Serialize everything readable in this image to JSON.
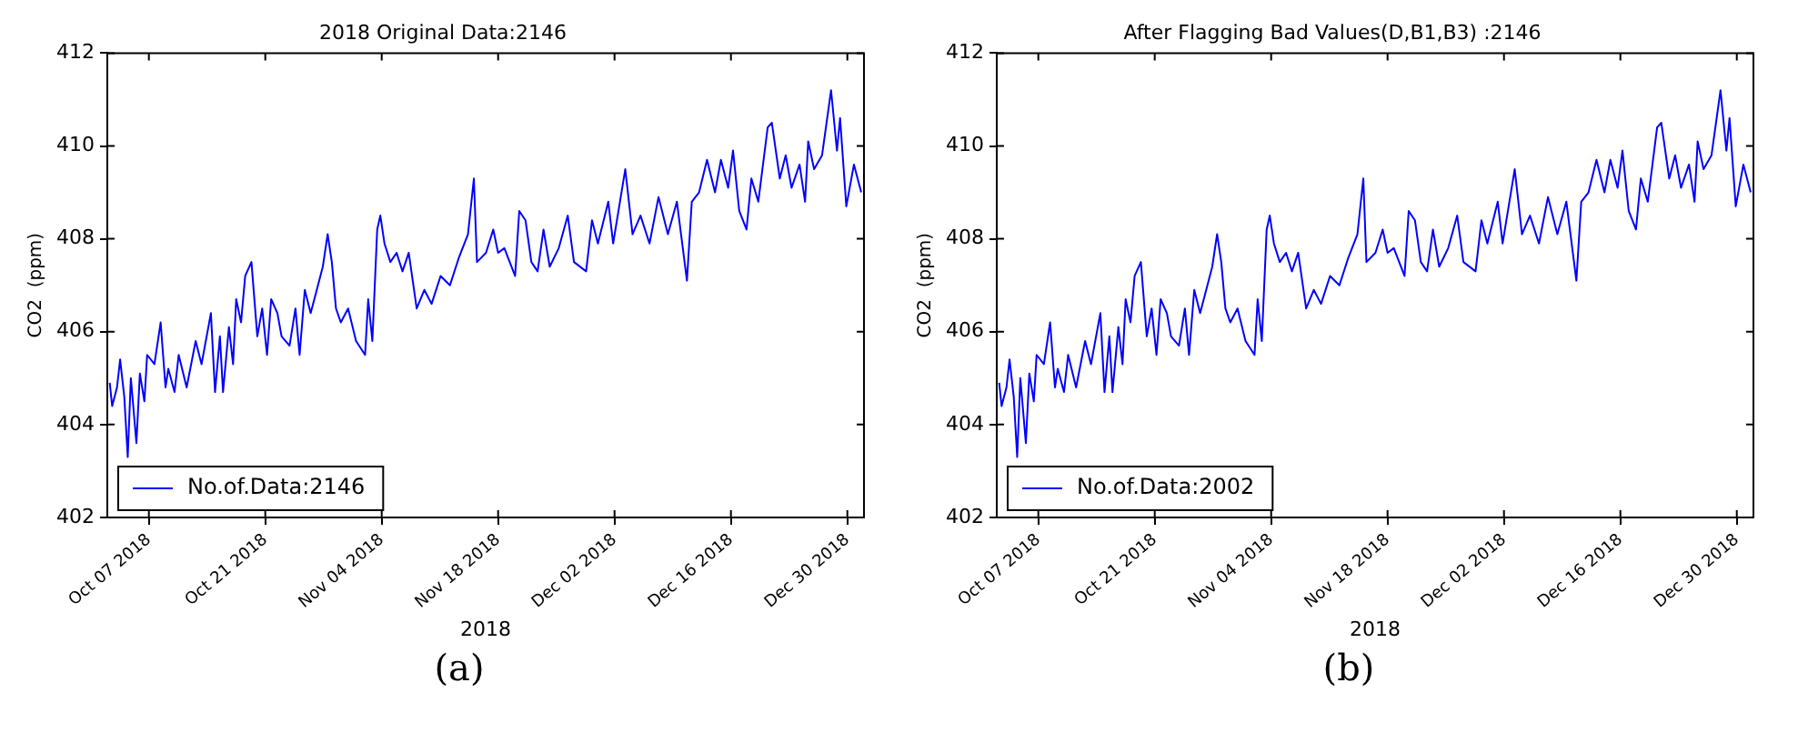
{
  "chart_data": [
    {
      "type": "line",
      "title": "2018 Original Data:2146",
      "xlabel": "2018",
      "ylabel": "CO2  (ppm)",
      "annotations": [
        "(a)"
      ],
      "legend": "bottom left",
      "grid": false,
      "marker": "none",
      "line_style": "solid",
      "xlim": [
        "2018-10-02",
        "2019-01-01"
      ],
      "xticks": [
        {
          "value": "2018-10-07",
          "label": "Oct 07 2018"
        },
        {
          "value": "2018-10-21",
          "label": "Oct 21 2018"
        },
        {
          "value": "2018-11-04",
          "label": "Nov 04 2018"
        },
        {
          "value": "2018-11-18",
          "label": "Nov 18 2018"
        },
        {
          "value": "2018-12-02",
          "label": "Dec 02 2018"
        },
        {
          "value": "2018-12-16",
          "label": "Dec 16 2018"
        },
        {
          "value": "2018-12-30",
          "label": "Dec 30 2018"
        }
      ],
      "ylim": [
        402,
        412
      ],
      "yticks": [
        402,
        404,
        406,
        408,
        410,
        412
      ],
      "x": [
        "2018-10-02T07:00",
        "2018-10-02T14:00",
        "2018-10-03T04:00",
        "2018-10-03T13:00",
        "2018-10-04T01:00",
        "2018-10-04T11:00",
        "2018-10-04T20:00",
        "2018-10-05T12:00",
        "2018-10-05T22:00",
        "2018-10-06T11:00",
        "2018-10-06T19:00",
        "2018-10-07T16:00",
        "2018-10-08T10:00",
        "2018-10-09T00:00",
        "2018-10-09T08:00",
        "2018-10-10T02:00",
        "2018-10-10T14:00",
        "2018-10-11T13:00",
        "2018-10-12T15:00",
        "2018-10-13T08:00",
        "2018-10-14T11:00",
        "2018-10-14T23:00",
        "2018-10-15T13:00",
        "2018-10-15T22:00",
        "2018-10-16T15:00",
        "2018-10-17T03:00",
        "2018-10-17T12:00",
        "2018-10-18T02:00",
        "2018-10-18T14:00",
        "2018-10-19T08:00",
        "2018-10-20T01:00",
        "2018-10-20T15:00",
        "2018-10-21T05:00",
        "2018-10-21T17:00",
        "2018-10-22T11:00",
        "2018-10-22T23:00",
        "2018-10-23T22:00",
        "2018-10-24T15:00",
        "2018-10-25T03:00",
        "2018-10-25T18:00",
        "2018-10-26T11:00",
        "2018-10-27T01:00",
        "2018-10-27T22:00",
        "2018-10-28T12:00",
        "2018-10-29T00:00",
        "2018-10-29T12:00",
        "2018-10-30T02:00",
        "2018-10-30T23:00",
        "2018-10-31T22:00",
        "2018-11-02T00:00",
        "2018-11-02T09:00",
        "2018-11-02T21:00",
        "2018-11-03T11:00",
        "2018-11-03T20:00",
        "2018-11-04T08:00",
        "2018-11-05T01:00",
        "2018-11-05T19:00",
        "2018-11-06T12:00",
        "2018-11-07T06:00",
        "2018-11-08T05:00",
        "2018-11-09T03:00",
        "2018-11-10T00:00",
        "2018-11-11T02:00",
        "2018-11-12T05:00",
        "2018-11-13T07:00",
        "2018-11-14T09:00",
        "2018-11-15T02:00",
        "2018-11-15T11:00",
        "2018-11-16T13:00",
        "2018-11-17T10:00",
        "2018-11-18T00:00",
        "2018-11-18T18:00",
        "2018-11-20T01:00",
        "2018-11-20T13:00",
        "2018-11-21T07:00",
        "2018-11-22T00:00",
        "2018-11-22T18:00",
        "2018-11-23T11:00",
        "2018-11-24T05:00",
        "2018-11-25T07:00",
        "2018-11-26T09:00",
        "2018-11-27T03:00",
        "2018-11-28T14:00",
        "2018-11-29T07:00",
        "2018-11-30T00:00",
        "2018-12-01T06:00",
        "2018-12-01T20:00",
        "2018-12-03T07:00",
        "2018-12-04T04:00",
        "2018-12-05T03:00",
        "2018-12-06T05:00",
        "2018-12-07T07:00",
        "2018-12-08T10:00",
        "2018-12-09T12:00",
        "2018-12-10T17:00",
        "2018-12-11T07:00",
        "2018-12-12T04:00",
        "2018-12-13T03:00",
        "2018-12-14T02:00",
        "2018-12-14T19:00",
        "2018-12-15T16:00",
        "2018-12-16T06:00",
        "2018-12-17T00:00",
        "2018-12-17T21:00",
        "2018-12-18T11:00",
        "2018-12-19T07:00",
        "2018-12-20T10:00",
        "2018-12-20T22:00",
        "2018-12-21T21:00",
        "2018-12-22T14:00",
        "2018-12-23T07:00",
        "2018-12-24T06:00",
        "2018-12-24T22:00",
        "2018-12-25T07:00",
        "2018-12-26T00:00",
        "2018-12-26T23:00",
        "2018-12-28T01:00",
        "2018-12-28T18:00",
        "2018-12-29T03:00",
        "2018-12-29T21:00",
        "2018-12-30T19:00",
        "2018-12-31T16:00"
      ],
      "series": [
        {
          "name": "No.of.Data:2146",
          "color": "#0000ff",
          "values": [
            404.9,
            404.4,
            404.8,
            405.4,
            404.6,
            403.3,
            405.0,
            403.6,
            405.1,
            404.5,
            405.5,
            405.3,
            406.2,
            404.8,
            405.2,
            404.7,
            405.5,
            404.8,
            405.8,
            405.3,
            406.4,
            404.7,
            405.9,
            404.7,
            406.1,
            405.3,
            406.7,
            406.2,
            407.2,
            407.5,
            405.9,
            406.5,
            405.5,
            406.7,
            406.4,
            405.9,
            405.7,
            406.5,
            405.5,
            406.9,
            406.4,
            406.8,
            407.4,
            408.1,
            407.5,
            406.5,
            406.2,
            406.5,
            405.8,
            405.5,
            406.7,
            405.8,
            408.2,
            408.5,
            407.9,
            407.5,
            407.7,
            407.3,
            407.7,
            406.5,
            406.9,
            406.6,
            407.2,
            407.0,
            407.6,
            408.1,
            409.3,
            407.5,
            407.7,
            408.2,
            407.7,
            407.8,
            407.2,
            408.6,
            408.4,
            407.5,
            407.3,
            408.2,
            407.4,
            407.8,
            408.5,
            407.5,
            407.3,
            408.4,
            407.9,
            408.8,
            407.9,
            409.5,
            408.1,
            408.5,
            407.9,
            408.9,
            408.1,
            408.8,
            407.1,
            408.8,
            409.0,
            409.7,
            409.0,
            409.7,
            409.1,
            409.9,
            408.6,
            408.2,
            409.3,
            408.8,
            410.4,
            410.5,
            409.3,
            409.8,
            409.1,
            409.6,
            408.8,
            410.1,
            409.5,
            409.8,
            411.2,
            409.9,
            410.6,
            408.7,
            409.6,
            409.0
          ]
        }
      ]
    },
    {
      "type": "line",
      "title": "After Flagging Bad Values(D,B1,B3) :2146",
      "xlabel": "2018",
      "ylabel": "CO2  (ppm)",
      "annotations": [
        "(b)"
      ],
      "legend": "bottom left",
      "grid": false,
      "marker": "none",
      "line_style": "solid",
      "xlim": [
        "2018-10-02",
        "2019-01-01"
      ],
      "xticks": [
        {
          "value": "2018-10-07",
          "label": "Oct 07 2018"
        },
        {
          "value": "2018-10-21",
          "label": "Oct 21 2018"
        },
        {
          "value": "2018-11-04",
          "label": "Nov 04 2018"
        },
        {
          "value": "2018-11-18",
          "label": "Nov 18 2018"
        },
        {
          "value": "2018-12-02",
          "label": "Dec 02 2018"
        },
        {
          "value": "2018-12-16",
          "label": "Dec 16 2018"
        },
        {
          "value": "2018-12-30",
          "label": "Dec 30 2018"
        }
      ],
      "ylim": [
        402,
        412
      ],
      "yticks": [
        402,
        404,
        406,
        408,
        410,
        412
      ],
      "x": [
        "2018-10-02T07:00",
        "2018-10-02T14:00",
        "2018-10-03T04:00",
        "2018-10-03T13:00",
        "2018-10-04T01:00",
        "2018-10-04T11:00",
        "2018-10-04T20:00",
        "2018-10-05T12:00",
        "2018-10-05T22:00",
        "2018-10-06T11:00",
        "2018-10-06T19:00",
        "2018-10-07T16:00",
        "2018-10-08T10:00",
        "2018-10-09T00:00",
        "2018-10-09T08:00",
        "2018-10-10T02:00",
        "2018-10-10T14:00",
        "2018-10-11T13:00",
        "2018-10-12T15:00",
        "2018-10-13T08:00",
        "2018-10-14T11:00",
        "2018-10-14T23:00",
        "2018-10-15T13:00",
        "2018-10-15T22:00",
        "2018-10-16T15:00",
        "2018-10-17T03:00",
        "2018-10-17T12:00",
        "2018-10-18T02:00",
        "2018-10-18T14:00",
        "2018-10-19T08:00",
        "2018-10-20T01:00",
        "2018-10-20T15:00",
        "2018-10-21T05:00",
        "2018-10-21T17:00",
        "2018-10-22T11:00",
        "2018-10-22T23:00",
        "2018-10-23T22:00",
        "2018-10-24T15:00",
        "2018-10-25T03:00",
        "2018-10-25T18:00",
        "2018-10-26T11:00",
        "2018-10-27T01:00",
        "2018-10-27T22:00",
        "2018-10-28T12:00",
        "2018-10-29T00:00",
        "2018-10-29T12:00",
        "2018-10-30T02:00",
        "2018-10-30T23:00",
        "2018-10-31T22:00",
        "2018-11-02T00:00",
        "2018-11-02T09:00",
        "2018-11-02T21:00",
        "2018-11-03T11:00",
        "2018-11-03T20:00",
        "2018-11-04T08:00",
        "2018-11-05T01:00",
        "2018-11-05T19:00",
        "2018-11-06T12:00",
        "2018-11-07T06:00",
        "2018-11-08T05:00",
        "2018-11-09T03:00",
        "2018-11-10T00:00",
        "2018-11-11T02:00",
        "2018-11-12T05:00",
        "2018-11-13T07:00",
        "2018-11-14T09:00",
        "2018-11-15T02:00",
        "2018-11-15T11:00",
        "2018-11-16T13:00",
        "2018-11-17T10:00",
        "2018-11-18T00:00",
        "2018-11-18T18:00",
        "2018-11-20T01:00",
        "2018-11-20T13:00",
        "2018-11-21T07:00",
        "2018-11-22T00:00",
        "2018-11-22T18:00",
        "2018-11-23T11:00",
        "2018-11-24T05:00",
        "2018-11-25T07:00",
        "2018-11-26T09:00",
        "2018-11-27T03:00",
        "2018-11-28T14:00",
        "2018-11-29T07:00",
        "2018-11-30T00:00",
        "2018-12-01T06:00",
        "2018-12-01T20:00",
        "2018-12-03T07:00",
        "2018-12-04T04:00",
        "2018-12-05T03:00",
        "2018-12-06T05:00",
        "2018-12-07T07:00",
        "2018-12-08T10:00",
        "2018-12-09T12:00",
        "2018-12-10T17:00",
        "2018-12-11T07:00",
        "2018-12-12T04:00",
        "2018-12-13T03:00",
        "2018-12-14T02:00",
        "2018-12-14T19:00",
        "2018-12-15T16:00",
        "2018-12-16T06:00",
        "2018-12-17T00:00",
        "2018-12-17T21:00",
        "2018-12-18T11:00",
        "2018-12-19T07:00",
        "2018-12-20T10:00",
        "2018-12-20T22:00",
        "2018-12-21T21:00",
        "2018-12-22T14:00",
        "2018-12-23T07:00",
        "2018-12-24T06:00",
        "2018-12-24T22:00",
        "2018-12-25T07:00",
        "2018-12-26T00:00",
        "2018-12-26T23:00",
        "2018-12-28T01:00",
        "2018-12-28T18:00",
        "2018-12-29T03:00",
        "2018-12-29T21:00",
        "2018-12-30T19:00",
        "2018-12-31T16:00"
      ],
      "series": [
        {
          "name": "No.of.Data:2002",
          "color": "#0000ff",
          "values": [
            404.9,
            404.4,
            404.8,
            405.4,
            404.6,
            403.3,
            405.0,
            403.6,
            405.1,
            404.5,
            405.5,
            405.3,
            406.2,
            404.8,
            405.2,
            404.7,
            405.5,
            404.8,
            405.8,
            405.3,
            406.4,
            404.7,
            405.9,
            404.7,
            406.1,
            405.3,
            406.7,
            406.2,
            407.2,
            407.5,
            405.9,
            406.5,
            405.5,
            406.7,
            406.4,
            405.9,
            405.7,
            406.5,
            405.5,
            406.9,
            406.4,
            406.8,
            407.4,
            408.1,
            407.5,
            406.5,
            406.2,
            406.5,
            405.8,
            405.5,
            406.7,
            405.8,
            408.2,
            408.5,
            407.9,
            407.5,
            407.7,
            407.3,
            407.7,
            406.5,
            406.9,
            406.6,
            407.2,
            407.0,
            407.6,
            408.1,
            409.3,
            407.5,
            407.7,
            408.2,
            407.7,
            407.8,
            407.2,
            408.6,
            408.4,
            407.5,
            407.3,
            408.2,
            407.4,
            407.8,
            408.5,
            407.5,
            407.3,
            408.4,
            407.9,
            408.8,
            407.9,
            409.5,
            408.1,
            408.5,
            407.9,
            408.9,
            408.1,
            408.8,
            407.1,
            408.8,
            409.0,
            409.7,
            409.0,
            409.7,
            409.1,
            409.9,
            408.6,
            408.2,
            409.3,
            408.8,
            410.4,
            410.5,
            409.3,
            409.8,
            409.1,
            409.6,
            408.8,
            410.1,
            409.5,
            409.8,
            411.2,
            409.9,
            410.6,
            408.7,
            409.6,
            409.0
          ]
        }
      ]
    }
  ]
}
